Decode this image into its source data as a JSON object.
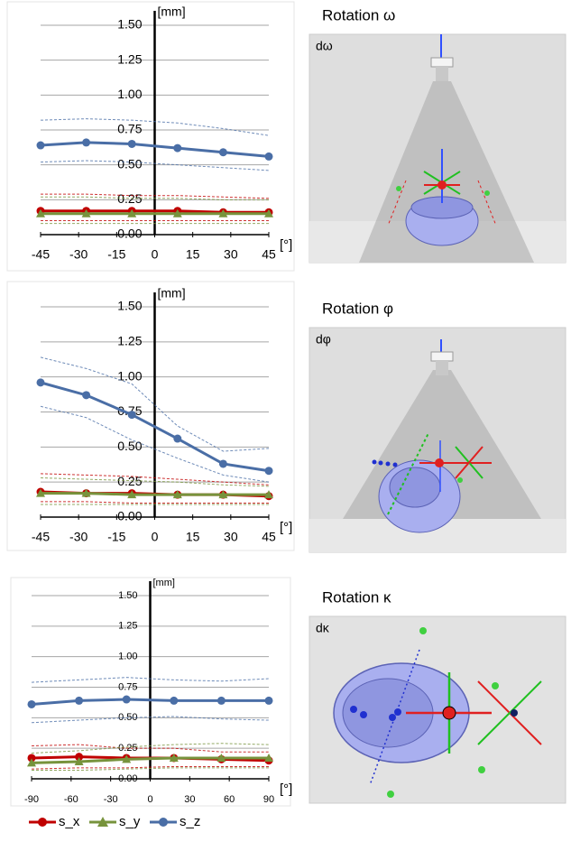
{
  "chart_data": [
    {
      "type": "line",
      "title": "Rotation ω",
      "panel_label": "dω",
      "y_label": "[mm]",
      "x_label": "[°]",
      "x": [
        -45,
        -27,
        -9,
        9,
        27,
        45
      ],
      "xlim": [
        -45,
        45
      ],
      "xticks": [
        -45,
        -30,
        -15,
        0,
        15,
        30,
        45
      ],
      "ylim": [
        0,
        1.5
      ],
      "yticks": [
        {
          "value": 0,
          "label": "0.00"
        },
        0.25,
        {
          "value": 0.5,
          "label": "0.50"
        },
        0.75,
        {
          "value": 1,
          "label": "1.00"
        },
        1.25,
        {
          "value": 1.5,
          "label": "1.50"
        }
      ],
      "grid": true,
      "series": [
        {
          "name": "s_x",
          "color": "#c00000",
          "marker": "circle",
          "values": [
            0.17,
            0.17,
            0.17,
            0.17,
            0.16,
            0.16
          ],
          "upper": [
            0.29,
            0.29,
            0.28,
            0.28,
            0.27,
            0.26
          ],
          "lower": [
            0.1,
            0.1,
            0.1,
            0.1,
            0.1,
            0.1
          ]
        },
        {
          "name": "s_y",
          "color": "#77933c",
          "marker": "triangle",
          "values": [
            0.15,
            0.15,
            0.15,
            0.15,
            0.15,
            0.15
          ],
          "upper": [
            0.27,
            0.27,
            0.26,
            0.26,
            0.25,
            0.25
          ],
          "lower": [
            0.08,
            0.08,
            0.08,
            0.08,
            0.08,
            0.08
          ]
        },
        {
          "name": "s_z",
          "color": "#4a6ea6",
          "marker": "circle",
          "values": [
            0.64,
            0.66,
            0.65,
            0.62,
            0.59,
            0.56
          ],
          "upper": [
            0.82,
            0.83,
            0.82,
            0.8,
            0.76,
            0.71
          ],
          "lower": [
            0.52,
            0.53,
            0.52,
            0.5,
            0.48,
            0.46
          ]
        }
      ]
    },
    {
      "type": "line",
      "title": "Rotation φ",
      "panel_label": "dφ",
      "y_label": "[mm]",
      "x_label": "[°]",
      "x": [
        -45,
        -27,
        -9,
        9,
        27,
        45
      ],
      "xlim": [
        -45,
        45
      ],
      "xticks": [
        -45,
        -30,
        -15,
        0,
        15,
        30,
        45
      ],
      "ylim": [
        0,
        1.5
      ],
      "yticks": [
        {
          "value": 0,
          "label": "0.00"
        },
        0.25,
        {
          "value": 0.5,
          "label": "0.50"
        },
        0.75,
        {
          "value": 1,
          "label": "1.00"
        },
        1.25,
        {
          "value": 1.5,
          "label": "1.50"
        }
      ],
      "grid": true,
      "series": [
        {
          "color": "#c00000",
          "marker": "circle",
          "values": [
            0.18,
            0.17,
            0.17,
            0.16,
            0.16,
            0.15
          ],
          "upper": [
            0.31,
            0.3,
            0.29,
            0.27,
            0.25,
            0.23
          ],
          "lower": [
            0.11,
            0.11,
            0.1,
            0.1,
            0.1,
            0.1
          ]
        },
        {
          "color": "#77933c",
          "marker": "triangle",
          "values": [
            0.17,
            0.17,
            0.16,
            0.16,
            0.16,
            0.16
          ],
          "upper": [
            0.28,
            0.27,
            0.26,
            0.25,
            0.23,
            0.22
          ],
          "lower": [
            0.09,
            0.09,
            0.09,
            0.09,
            0.09,
            0.09
          ]
        },
        {
          "color": "#4a6ea6",
          "marker": "circle",
          "values": [
            0.96,
            0.87,
            0.73,
            0.56,
            0.38,
            0.33
          ],
          "upper": [
            1.14,
            1.06,
            0.95,
            0.65,
            0.47,
            0.49
          ],
          "lower": [
            0.79,
            0.71,
            0.55,
            0.42,
            0.3,
            0.25
          ]
        }
      ]
    },
    {
      "type": "line",
      "title": "Rotation κ",
      "panel_label": "dκ",
      "y_label": "[mm]",
      "x_label": "[°]",
      "x": [
        -90,
        -54,
        -18,
        18,
        54,
        90
      ],
      "xlim": [
        -90,
        90
      ],
      "xticks": [
        -90,
        -60,
        -30,
        0,
        30,
        60,
        90
      ],
      "ylim": [
        0,
        1.5
      ],
      "yticks": [
        {
          "value": 0,
          "label": "0.00"
        },
        0.25,
        {
          "value": 0.5,
          "label": "0.50"
        },
        0.75,
        {
          "value": 1,
          "label": "1.00"
        },
        1.25,
        {
          "value": 1.5,
          "label": "1.50"
        }
      ],
      "grid": true,
      "series": [
        {
          "color": "#c00000",
          "marker": "circle",
          "values": [
            0.17,
            0.18,
            0.17,
            0.17,
            0.16,
            0.15
          ],
          "upper": [
            0.27,
            0.28,
            0.25,
            0.25,
            0.22,
            0.22
          ],
          "lower": [
            0.08,
            0.09,
            0.09,
            0.1,
            0.1,
            0.1
          ]
        },
        {
          "color": "#77933c",
          "marker": "triangle",
          "values": [
            0.13,
            0.14,
            0.16,
            0.17,
            0.17,
            0.17
          ],
          "upper": [
            0.21,
            0.23,
            0.26,
            0.28,
            0.29,
            0.28
          ],
          "lower": [
            0.07,
            0.07,
            0.08,
            0.09,
            0.09,
            0.09
          ]
        },
        {
          "color": "#4a6ea6",
          "marker": "circle",
          "values": [
            0.61,
            0.64,
            0.65,
            0.64,
            0.64,
            0.64
          ],
          "upper": [
            0.79,
            0.81,
            0.83,
            0.81,
            0.8,
            0.82
          ],
          "lower": [
            0.46,
            0.48,
            0.5,
            0.51,
            0.49,
            0.48
          ]
        }
      ]
    }
  ]
}
